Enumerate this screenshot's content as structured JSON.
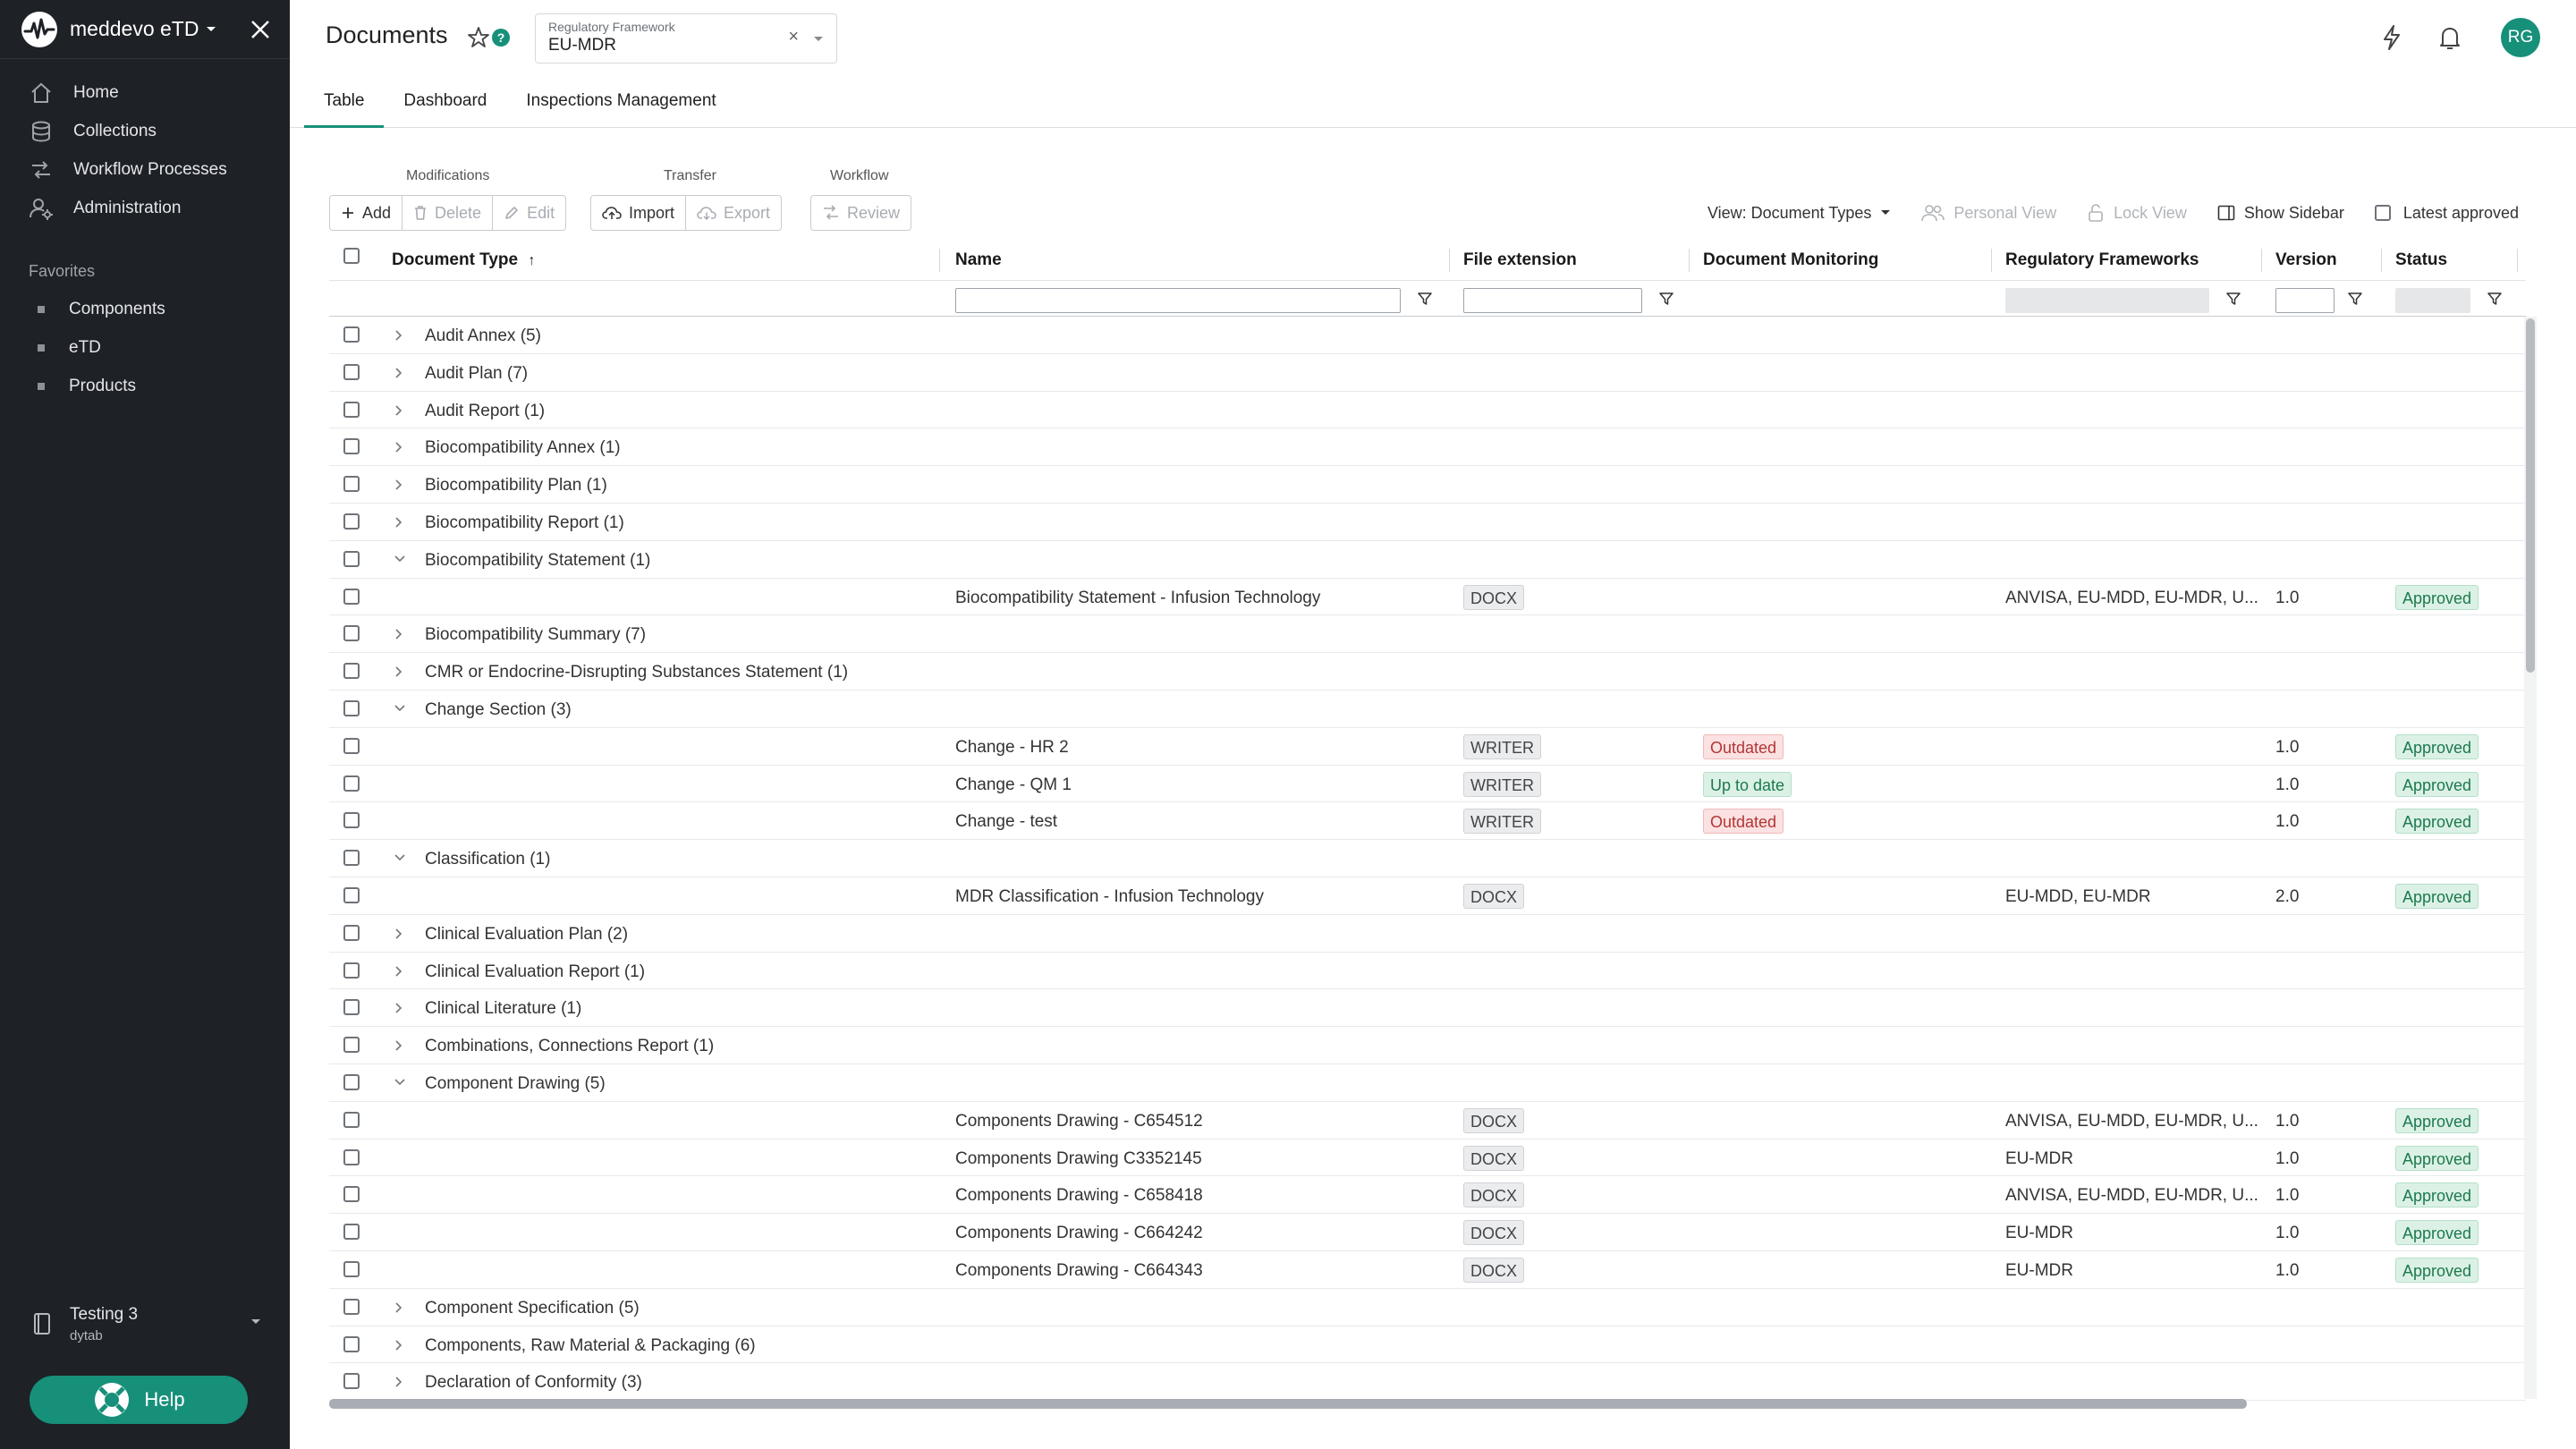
{
  "app": {
    "name": "meddevo eTD"
  },
  "nav": [
    {
      "label": "Home",
      "icon": "home-icon"
    },
    {
      "label": "Collections",
      "icon": "database-icon"
    },
    {
      "label": "Workflow Processes",
      "icon": "workflow-icon"
    },
    {
      "label": "Administration",
      "icon": "admin-icon"
    }
  ],
  "favorites": {
    "title": "Favorites",
    "items": [
      "Components",
      "eTD",
      "Products"
    ]
  },
  "workspace": {
    "name": "Testing 3",
    "sub": "dytab"
  },
  "help": {
    "label": "Help"
  },
  "header": {
    "title": "Documents",
    "framework_label": "Regulatory Framework",
    "framework_value": "EU-MDR",
    "avatar": "RG",
    "tabs": [
      "Table",
      "Dashboard",
      "Inspections Management"
    ],
    "active_tab": "Table"
  },
  "toolbar": {
    "modifications_label": "Modifications",
    "transfer_label": "Transfer",
    "workflow_label": "Workflow",
    "add": "Add",
    "delete": "Delete",
    "edit": "Edit",
    "import": "Import",
    "export": "Export",
    "review": "Review",
    "view": "View: Document Types",
    "personal_view": "Personal View",
    "lock_view": "Lock View",
    "show_sidebar": "Show Sidebar",
    "latest_approved": "Latest approved"
  },
  "columns": {
    "document_type": "Document Type",
    "name": "Name",
    "file_extension": "File extension",
    "document_monitoring": "Document Monitoring",
    "regulatory_frameworks": "Regulatory Frameworks",
    "version": "Version",
    "status": "Status"
  },
  "rows": [
    {
      "group": "Audit Annex (5)",
      "expanded": false
    },
    {
      "group": "Audit Plan (7)",
      "expanded": false
    },
    {
      "group": "Audit Report (1)",
      "expanded": false
    },
    {
      "group": "Biocompatibility Annex (1)",
      "expanded": false
    },
    {
      "group": "Biocompatibility Plan (1)",
      "expanded": false
    },
    {
      "group": "Biocompatibility Report (1)",
      "expanded": false
    },
    {
      "group": "Biocompatibility Statement (1)",
      "expanded": true
    },
    {
      "name": "Biocompatibility Statement - Infusion Technology",
      "ext": "DOCX",
      "monitoring": "",
      "frameworks": "ANVISA, EU-MDD, EU-MDR, U...",
      "version": "1.0",
      "status": "Approved"
    },
    {
      "group": "Biocompatibility Summary (7)",
      "expanded": false
    },
    {
      "group": "CMR or Endocrine-Disrupting Substances Statement (1)",
      "expanded": false
    },
    {
      "group": "Change Section (3)",
      "expanded": true
    },
    {
      "name": "Change - HR 2",
      "ext": "WRITER",
      "monitoring": "Outdated",
      "frameworks": "",
      "version": "1.0",
      "status": "Approved"
    },
    {
      "name": "Change - QM 1",
      "ext": "WRITER",
      "monitoring": "Up to date",
      "frameworks": "",
      "version": "1.0",
      "status": "Approved"
    },
    {
      "name": "Change - test",
      "ext": "WRITER",
      "monitoring": "Outdated",
      "frameworks": "",
      "version": "1.0",
      "status": "Approved"
    },
    {
      "group": "Classification (1)",
      "expanded": true
    },
    {
      "name": "MDR Classification - Infusion Technology",
      "ext": "DOCX",
      "monitoring": "",
      "frameworks": "EU-MDD, EU-MDR",
      "version": "2.0",
      "status": "Approved"
    },
    {
      "group": "Clinical Evaluation Plan (2)",
      "expanded": false
    },
    {
      "group": "Clinical Evaluation Report (1)",
      "expanded": false
    },
    {
      "group": "Clinical Literature (1)",
      "expanded": false
    },
    {
      "group": "Combinations, Connections Report (1)",
      "expanded": false
    },
    {
      "group": "Component Drawing (5)",
      "expanded": true
    },
    {
      "name": "Components Drawing - C654512",
      "ext": "DOCX",
      "monitoring": "",
      "frameworks": "ANVISA, EU-MDD, EU-MDR, U...",
      "version": "1.0",
      "status": "Approved"
    },
    {
      "name": "Components Drawing C3352145",
      "ext": "DOCX",
      "monitoring": "",
      "frameworks": "EU-MDR",
      "version": "1.0",
      "status": "Approved"
    },
    {
      "name": "Components Drawing - C658418",
      "ext": "DOCX",
      "monitoring": "",
      "frameworks": "ANVISA, EU-MDD, EU-MDR, U...",
      "version": "1.0",
      "status": "Approved"
    },
    {
      "name": "Components Drawing - C664242",
      "ext": "DOCX",
      "monitoring": "",
      "frameworks": "EU-MDR",
      "version": "1.0",
      "status": "Approved"
    },
    {
      "name": "Components Drawing - C664343",
      "ext": "DOCX",
      "monitoring": "",
      "frameworks": "EU-MDR",
      "version": "1.0",
      "status": "Approved"
    },
    {
      "group": "Component Specification (5)",
      "expanded": false
    },
    {
      "group": "Components, Raw Material & Packaging (6)",
      "expanded": false
    },
    {
      "group": "Declaration of Conformity (3)",
      "expanded": false
    }
  ],
  "colors": {
    "accent": "#17907a",
    "sidebar": "#1e2126"
  }
}
